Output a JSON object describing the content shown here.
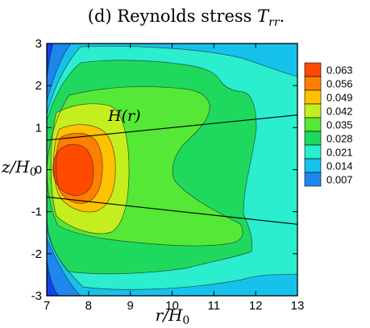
{
  "chart_data": {
    "type": "heatmap",
    "title": "(d) Reynolds stress T_rr.",
    "title_parts": {
      "prefix": "(d) Reynolds stress ",
      "symbol": "T",
      "subscript": "rr",
      "suffix": "."
    },
    "xlabel": "r/H_0",
    "xlabel_parts": {
      "main": "r/H",
      "subscript": "0"
    },
    "ylabel": "z/H_0",
    "ylabel_parts": {
      "main": "z/H",
      "subscript": "0"
    },
    "xlim": [
      7,
      13
    ],
    "ylim": [
      -3,
      3
    ],
    "x_ticks": [
      "7",
      "8",
      "9",
      "10",
      "11",
      "12",
      "13"
    ],
    "y_ticks": [
      "-3",
      "-2",
      "-1",
      "0",
      "1",
      "2",
      "3"
    ],
    "contour_levels": [
      0.007,
      0.014,
      0.021,
      0.028,
      0.035,
      0.042,
      0.049,
      0.056,
      0.063
    ],
    "level_labels": [
      "0.063",
      "0.056",
      "0.049",
      "0.042",
      "0.035",
      "0.028",
      "0.021",
      "0.014",
      "0.007"
    ],
    "legend_position": "right",
    "annotation": "H(r)",
    "boundary_lines": [
      {
        "points": [
          [
            7,
            0.7
          ],
          [
            13,
            1.3
          ]
        ]
      },
      {
        "points": [
          [
            7,
            -0.65
          ],
          [
            13,
            -1.3
          ]
        ]
      }
    ],
    "colors": [
      "#1144e8",
      "#1e86ec",
      "#16c2ec",
      "#2aeecd",
      "#1ed95e",
      "#55e836",
      "#c4ee1e",
      "#ffc100",
      "#ff7f00",
      "#ff4a00"
    ]
  }
}
